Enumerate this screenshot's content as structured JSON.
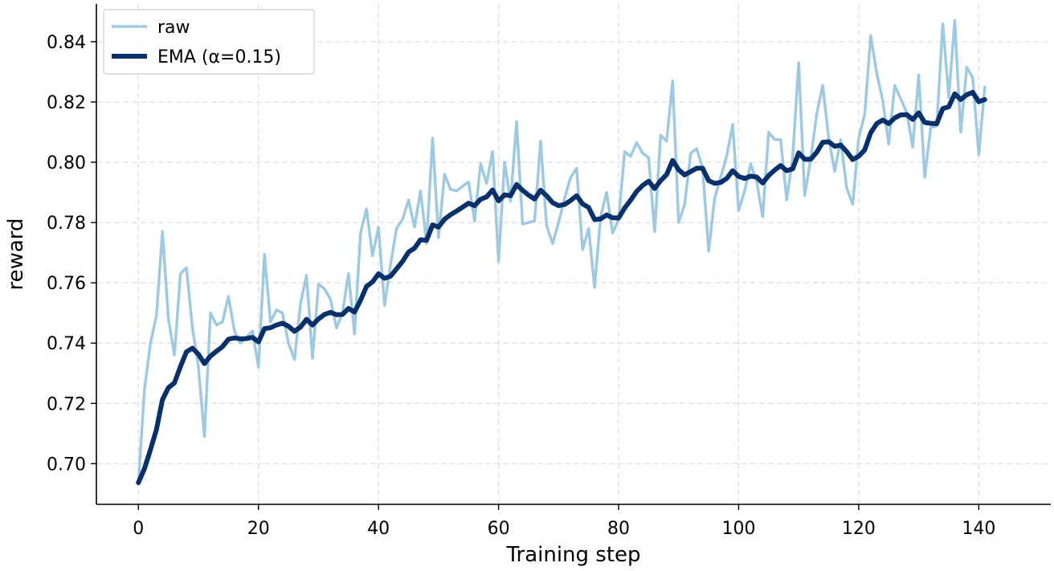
{
  "chart_data": {
    "type": "line",
    "title": "",
    "xlabel": "Training step",
    "ylabel": "reward",
    "xlim": [
      -7,
      152
    ],
    "ylim": [
      0.6865,
      0.8525
    ],
    "xticks": [
      0,
      20,
      40,
      60,
      80,
      100,
      120,
      140
    ],
    "yticks": [
      0.7,
      0.72,
      0.74,
      0.76,
      0.78,
      0.8,
      0.82,
      0.84
    ],
    "grid": true,
    "legend_position": "top-left",
    "series": [
      {
        "name": "raw",
        "color": "#9ecae1",
        "values": [
          0.6937,
          0.7245,
          0.74,
          0.749,
          0.777,
          0.748,
          0.736,
          0.763,
          0.765,
          0.745,
          0.732,
          0.709,
          0.75,
          0.746,
          0.747,
          0.7555,
          0.744,
          0.74,
          0.742,
          0.744,
          0.732,
          0.7695,
          0.747,
          0.751,
          0.75,
          0.74,
          0.7345,
          0.753,
          0.7625,
          0.735,
          0.7595,
          0.758,
          0.7545,
          0.745,
          0.75,
          0.763,
          0.743,
          0.7765,
          0.7845,
          0.769,
          0.7785,
          0.7525,
          0.766,
          0.778,
          0.781,
          0.7875,
          0.7785,
          0.7905,
          0.773,
          0.808,
          0.775,
          0.796,
          0.791,
          0.7905,
          0.792,
          0.7935,
          0.7805,
          0.7995,
          0.793,
          0.8035,
          0.767,
          0.8,
          0.787,
          0.8135,
          0.7795,
          0.78,
          0.7805,
          0.807,
          0.779,
          0.773,
          0.78,
          0.788,
          0.795,
          0.798,
          0.771,
          0.778,
          0.7585,
          0.782,
          0.79,
          0.7765,
          0.781,
          0.8035,
          0.802,
          0.8065,
          0.803,
          0.8015,
          0.777,
          0.809,
          0.807,
          0.827,
          0.78,
          0.786,
          0.803,
          0.8045,
          0.798,
          0.7705,
          0.788,
          0.795,
          0.802,
          0.8125,
          0.784,
          0.7905,
          0.7995,
          0.7935,
          0.782,
          0.81,
          0.8075,
          0.8075,
          0.7875,
          0.8015,
          0.833,
          0.789,
          0.801,
          0.816,
          0.8255,
          0.808,
          0.797,
          0.8075,
          0.7915,
          0.786,
          0.808,
          0.816,
          0.842,
          0.8295,
          0.8205,
          0.806,
          0.8255,
          0.821,
          0.8165,
          0.805,
          0.829,
          0.795,
          0.8115,
          0.812,
          0.846,
          0.8215,
          0.847,
          0.81,
          0.8315,
          0.828,
          0.8025,
          0.825
        ]
      },
      {
        "name": "EMA (α=0.15)",
        "color": "#08306b",
        "values": [
          0.6937,
          0.6983,
          0.7046,
          0.7113,
          0.7212,
          0.7252,
          0.7268,
          0.7322,
          0.7371,
          0.7383,
          0.7363,
          0.7332,
          0.7357,
          0.7373,
          0.7388,
          0.7413,
          0.7417,
          0.7414,
          0.7415,
          0.7419,
          0.7404,
          0.7448,
          0.7451,
          0.746,
          0.7466,
          0.7456,
          0.7439,
          0.7453,
          0.7479,
          0.746,
          0.748,
          0.7495,
          0.7502,
          0.7494,
          0.7495,
          0.7515,
          0.7503,
          0.7542,
          0.7588,
          0.7603,
          0.763,
          0.7615,
          0.7622,
          0.7646,
          0.7671,
          0.7702,
          0.7715,
          0.7743,
          0.7741,
          0.7792,
          0.7785,
          0.7811,
          0.7826,
          0.7838,
          0.7851,
          0.7864,
          0.7856,
          0.7877,
          0.7885,
          0.7908,
          0.7872,
          0.7892,
          0.7889,
          0.7926,
          0.7907,
          0.7891,
          0.7878,
          0.7907,
          0.7889,
          0.7866,
          0.7856,
          0.786,
          0.7873,
          0.7889,
          0.7862,
          0.785,
          0.781,
          0.7812,
          0.7825,
          0.7816,
          0.7815,
          0.7848,
          0.7874,
          0.7903,
          0.7923,
          0.7937,
          0.7913,
          0.7939,
          0.7959,
          0.8006,
          0.7975,
          0.7958,
          0.7969,
          0.798,
          0.798,
          0.7939,
          0.793,
          0.7933,
          0.7946,
          0.7972,
          0.7953,
          0.7946,
          0.7954,
          0.7951,
          0.7931,
          0.7956,
          0.7974,
          0.7989,
          0.7972,
          0.7978,
          0.8031,
          0.801,
          0.801,
          0.8033,
          0.8066,
          0.8068,
          0.8053,
          0.8057,
          0.8035,
          0.8009,
          0.802,
          0.8041,
          0.8098,
          0.8128,
          0.814,
          0.8128,
          0.8147,
          0.8157,
          0.8158,
          0.8142,
          0.8164,
          0.8132,
          0.8129,
          0.8128,
          0.8178,
          0.8184,
          0.8227,
          0.8208,
          0.8224,
          0.8232,
          0.8201,
          0.8208
        ]
      }
    ]
  },
  "legend": {
    "items": [
      {
        "label": "raw",
        "color": "#9ecae1"
      },
      {
        "label": "EMA (α=0.15)",
        "color": "#08306b"
      }
    ]
  }
}
